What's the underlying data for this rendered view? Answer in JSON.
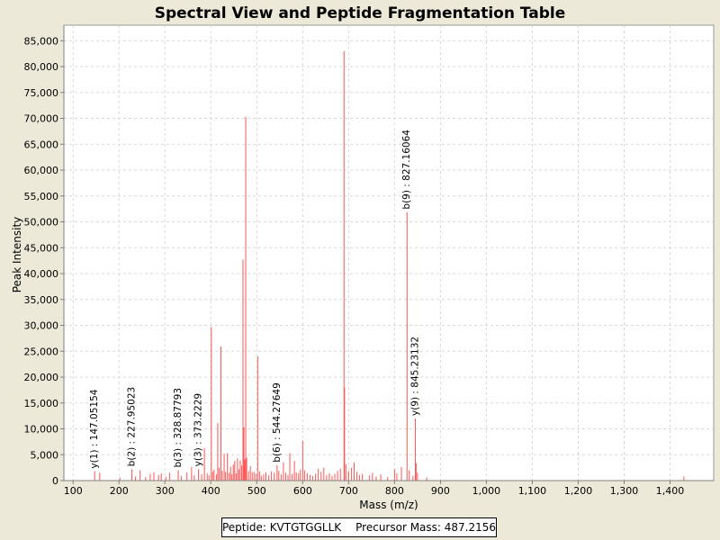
{
  "chart_data": {
    "type": "bar",
    "title": "Spectral View and Peptide Fragmentation Table",
    "xlabel": "Mass (m/z)",
    "ylabel": "Peak Intensity",
    "xlim": [
      80,
      1495
    ],
    "ylim": [
      0,
      88000
    ],
    "xticks": [
      100,
      200,
      300,
      400,
      500,
      600,
      700,
      800,
      900,
      1000,
      1100,
      1200,
      1300,
      1400
    ],
    "xtick_labels": [
      "100",
      "200",
      "300",
      "400",
      "500",
      "600",
      "700",
      "800",
      "900",
      "1,000",
      "1,100",
      "1,200",
      "1,300",
      "1,400"
    ],
    "yticks": [
      0,
      5000,
      10000,
      15000,
      20000,
      25000,
      30000,
      35000,
      40000,
      45000,
      50000,
      55000,
      60000,
      65000,
      70000,
      75000,
      80000,
      85000
    ],
    "ytick_labels": [
      "0",
      "5,000",
      "10,000",
      "15,000",
      "20,000",
      "25,000",
      "30,000",
      "35,000",
      "40,000",
      "45,000",
      "50,000",
      "55,000",
      "60,000",
      "65,000",
      "70,000",
      "75,000",
      "80,000",
      "85,000"
    ],
    "grid": true,
    "peak_color": "#ff5555",
    "peaks": [
      [
        147.05,
        1800
      ],
      [
        158,
        1500
      ],
      [
        202,
        600
      ],
      [
        227.95,
        2200
      ],
      [
        236,
        800
      ],
      [
        246,
        2000
      ],
      [
        258,
        700
      ],
      [
        268,
        1300
      ],
      [
        276,
        1600
      ],
      [
        286,
        1100
      ],
      [
        292,
        1400
      ],
      [
        302,
        700
      ],
      [
        310,
        1500
      ],
      [
        328.88,
        2000
      ],
      [
        336,
        900
      ],
      [
        348,
        1600
      ],
      [
        358,
        2600
      ],
      [
        364,
        1000
      ],
      [
        373.22,
        2200
      ],
      [
        380,
        1200
      ],
      [
        386,
        6300
      ],
      [
        392,
        1400
      ],
      [
        396,
        1000
      ],
      [
        401,
        29700
      ],
      [
        404,
        1700
      ],
      [
        407,
        2100
      ],
      [
        412,
        1200
      ],
      [
        415,
        11100
      ],
      [
        418,
        2500
      ],
      [
        422,
        25900
      ],
      [
        425,
        1900
      ],
      [
        429,
        5200
      ],
      [
        432,
        1700
      ],
      [
        436,
        5300
      ],
      [
        440,
        1500
      ],
      [
        443,
        2700
      ],
      [
        446,
        1200
      ],
      [
        449,
        3100
      ],
      [
        452,
        3800
      ],
      [
        455,
        1400
      ],
      [
        458,
        4300
      ],
      [
        461,
        2200
      ],
      [
        464,
        3900
      ],
      [
        467,
        2900
      ],
      [
        470,
        42700
      ],
      [
        472,
        10300
      ],
      [
        474,
        4100
      ],
      [
        476,
        70300
      ],
      [
        478,
        4400
      ],
      [
        482,
        1800
      ],
      [
        486,
        2800
      ],
      [
        490,
        1600
      ],
      [
        494,
        1700
      ],
      [
        498,
        1300
      ],
      [
        502,
        24000
      ],
      [
        506,
        1800
      ],
      [
        510,
        900
      ],
      [
        515,
        1200
      ],
      [
        520,
        1600
      ],
      [
        526,
        1000
      ],
      [
        532,
        1800
      ],
      [
        538,
        1500
      ],
      [
        544.28,
        3000
      ],
      [
        548,
        1900
      ],
      [
        553,
        1200
      ],
      [
        558,
        3500
      ],
      [
        563,
        1500
      ],
      [
        568,
        1100
      ],
      [
        572,
        5300
      ],
      [
        577,
        1300
      ],
      [
        582,
        3800
      ],
      [
        586,
        1600
      ],
      [
        591,
        1400
      ],
      [
        595,
        2100
      ],
      [
        600,
        7700
      ],
      [
        604,
        2000
      ],
      [
        610,
        1400
      ],
      [
        616,
        1100
      ],
      [
        622,
        900
      ],
      [
        628,
        1300
      ],
      [
        634,
        2300
      ],
      [
        640,
        1700
      ],
      [
        646,
        2500
      ],
      [
        652,
        1100
      ],
      [
        658,
        1400
      ],
      [
        664,
        900
      ],
      [
        670,
        1300
      ],
      [
        676,
        1900
      ],
      [
        682,
        2300
      ],
      [
        690,
        83000
      ],
      [
        691,
        18000
      ],
      [
        694,
        3200
      ],
      [
        700,
        1800
      ],
      [
        706,
        2500
      ],
      [
        712,
        3500
      ],
      [
        718,
        1700
      ],
      [
        724,
        1100
      ],
      [
        730,
        1300
      ],
      [
        745,
        1000
      ],
      [
        752,
        1500
      ],
      [
        760,
        800
      ],
      [
        770,
        1200
      ],
      [
        785,
        700
      ],
      [
        800,
        2200
      ],
      [
        805,
        1400
      ],
      [
        815,
        2600
      ],
      [
        827.16,
        51900
      ],
      [
        832,
        2000
      ],
      [
        840,
        900
      ],
      [
        845.23,
        12000
      ],
      [
        847,
        3400
      ],
      [
        850,
        1500
      ],
      [
        870,
        600
      ],
      [
        1430,
        800
      ]
    ],
    "annotations": [
      {
        "label": "y(1) : 147.05154",
        "mz": 147.05,
        "intensity": 1800
      },
      {
        "label": "b(2) : 227.95023",
        "mz": 227.95,
        "intensity": 2200
      },
      {
        "label": "b(3) : 328.87793",
        "mz": 328.88,
        "intensity": 2000
      },
      {
        "label": "y(3) : 373.2229",
        "mz": 373.22,
        "intensity": 2200
      },
      {
        "label": "b(6) : 544.27649",
        "mz": 544.28,
        "intensity": 3000
      },
      {
        "label": "b(9) : 827.16064",
        "mz": 827.16,
        "intensity": 51900
      },
      {
        "label": "y(9) : 845.23132",
        "mz": 845.23,
        "intensity": 12000
      }
    ]
  },
  "footer": {
    "peptide_text": "Peptide: KVTGTGGLLK",
    "precursor_text": "Precursor Mass: 487.2156"
  }
}
